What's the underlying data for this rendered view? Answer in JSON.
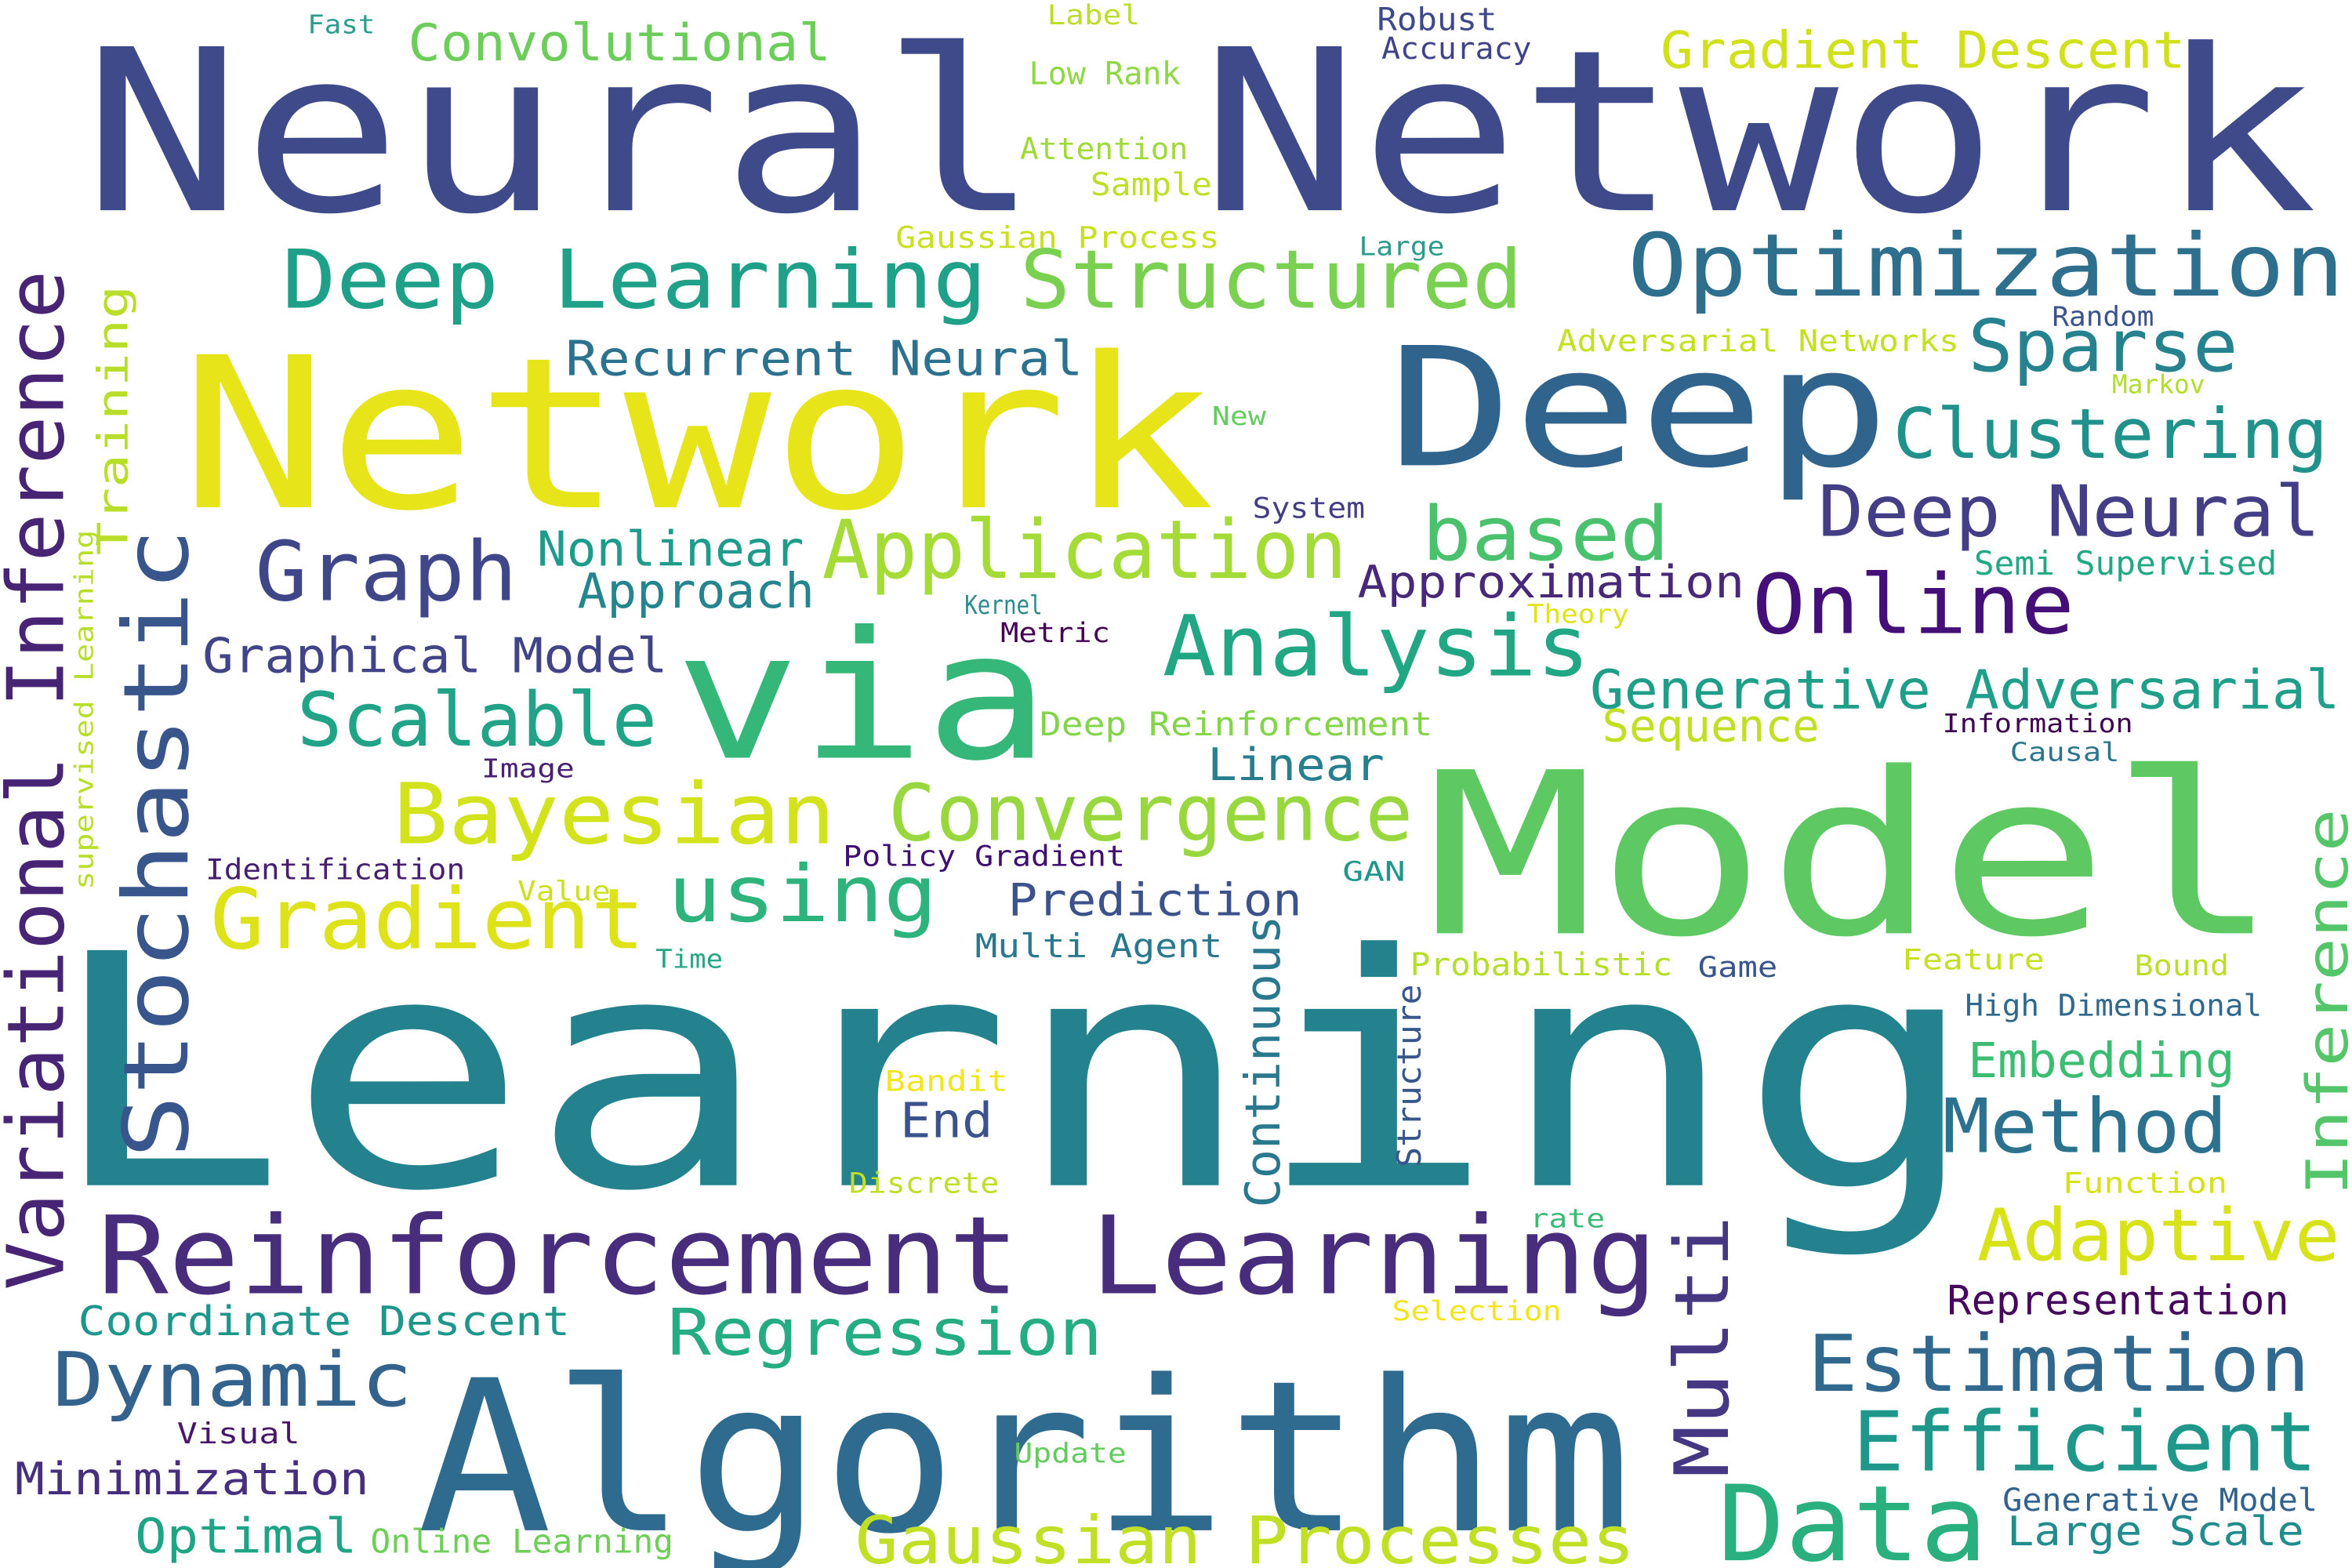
{
  "words": [
    {
      "text": "Learning",
      "color": "#23828e"
    },
    {
      "text": "Neural Network",
      "color": "#3e4a89"
    },
    {
      "text": "Algorithm",
      "color": "#2f6b8e"
    },
    {
      "text": "Model",
      "color": "#5ec962"
    },
    {
      "text": "Network",
      "color": "#e7e419"
    },
    {
      "text": "Deep",
      "color": "#31648d"
    },
    {
      "text": "via",
      "color": "#35b779"
    },
    {
      "text": "Reinforcement Learning",
      "color": "#472d7b"
    },
    {
      "text": "Optimization",
      "color": "#2e6f8e"
    },
    {
      "text": "Data",
      "color": "#2ab07f"
    },
    {
      "text": "Variational Inference",
      "color": "#482475"
    },
    {
      "text": "Stochastic",
      "color": "#39568c"
    },
    {
      "text": "Deep Learning",
      "color": "#1fa088"
    },
    {
      "text": "Structured",
      "color": "#7ad151"
    },
    {
      "text": "Analysis",
      "color": "#22a785"
    },
    {
      "text": "Application",
      "color": "#a5db36"
    },
    {
      "text": "Estimation",
      "color": "#31688e"
    },
    {
      "text": "Efficient",
      "color": "#1f988b"
    },
    {
      "text": "Gradient",
      "color": "#dde318"
    },
    {
      "text": "Bayesian",
      "color": "#d2e21b"
    },
    {
      "text": "Convergence",
      "color": "#98d83e"
    },
    {
      "text": "Graph",
      "color": "#3f4788"
    },
    {
      "text": "Online",
      "color": "#440f76"
    },
    {
      "text": "Clustering",
      "color": "#21918c"
    },
    {
      "text": "Deep Neural",
      "color": "#433e85"
    },
    {
      "text": "Sparse",
      "color": "#26828e"
    },
    {
      "text": "based",
      "color": "#4ac16d"
    },
    {
      "text": "Scalable",
      "color": "#20a386"
    },
    {
      "text": "using",
      "color": "#2eb37c"
    },
    {
      "text": "Method",
      "color": "#2c728e"
    },
    {
      "text": "Dynamic",
      "color": "#33638d"
    },
    {
      "text": "Regression",
      "color": "#25ac82"
    },
    {
      "text": "Gaussian Processes",
      "color": "#c0df25"
    },
    {
      "text": "Multi",
      "color": "#453781"
    },
    {
      "text": "Inference",
      "color": "#54c568"
    },
    {
      "text": "Adaptive",
      "color": "#d8e219"
    },
    {
      "text": "Generative Adversarial",
      "color": "#1f9e89"
    },
    {
      "text": "Recurrent Neural",
      "color": "#2c728e"
    },
    {
      "text": "Graphical Model",
      "color": "#414487"
    },
    {
      "text": "Nonlinear",
      "color": "#1e9b8a"
    },
    {
      "text": "Approach",
      "color": "#25858e"
    },
    {
      "text": "Training",
      "color": "#b8de29"
    },
    {
      "text": "Continuous",
      "color": "#2a788e"
    },
    {
      "text": "Convolutional",
      "color": "#6ccd5a"
    },
    {
      "text": "Gradient Descent",
      "color": "#d0e11c"
    },
    {
      "text": "Approximation",
      "color": "#482878"
    },
    {
      "text": "Prediction",
      "color": "#3b528b"
    },
    {
      "text": "Linear",
      "color": "#277f8e"
    },
    {
      "text": "Embedding",
      "color": "#3dbc74"
    },
    {
      "text": "Minimization",
      "color": "#46307e"
    },
    {
      "text": "Optimal",
      "color": "#20a486"
    },
    {
      "text": "Coordinate Descent",
      "color": "#1f968b"
    },
    {
      "text": "Representation",
      "color": "#46085c"
    },
    {
      "text": "Large Scale",
      "color": "#228c8d"
    },
    {
      "text": "End",
      "color": "#3b528b"
    },
    {
      "text": "Sequence",
      "color": "#c2df23"
    },
    {
      "text": "Deep Reinforcement",
      "color": "#84d44b"
    },
    {
      "text": "Generative Model",
      "color": "#33638d"
    },
    {
      "text": "Multi Agent",
      "color": "#2a788e"
    },
    {
      "text": "High Dimensional",
      "color": "#31688e"
    },
    {
      "text": "Semi Supervised",
      "color": "#22a884"
    },
    {
      "text": "Policy Gradient",
      "color": "#3f0f72"
    },
    {
      "text": "Online Learning",
      "color": "#6ece58"
    },
    {
      "text": "Structure",
      "color": "#39568c"
    },
    {
      "text": "Probabilistic",
      "color": "#b5de2b"
    },
    {
      "text": "Gaussian Process",
      "color": "#c8e020"
    },
    {
      "text": "Adversarial Networks",
      "color": "#c5e021"
    },
    {
      "text": "Identification",
      "color": "#481f70"
    },
    {
      "text": "Robust",
      "color": "#3e4989"
    },
    {
      "text": "Accuracy",
      "color": "#404387"
    },
    {
      "text": "Low Rank",
      "color": "#8fd744"
    },
    {
      "text": "Attention",
      "color": "#9fda3a"
    },
    {
      "text": "Sample",
      "color": "#bddf26"
    },
    {
      "text": "Fast",
      "color": "#2a9d8f"
    },
    {
      "text": "Label",
      "color": "#b9de28"
    },
    {
      "text": "Large",
      "color": "#2c9b8b"
    },
    {
      "text": "Random",
      "color": "#3b528b"
    },
    {
      "text": "Markov",
      "color": "#b2dd2d"
    },
    {
      "text": "New",
      "color": "#63cb5f"
    },
    {
      "text": "System",
      "color": "#433e85"
    },
    {
      "text": "Kernel",
      "color": "#2d8a8d"
    },
    {
      "text": "Metric",
      "color": "#440154"
    },
    {
      "text": "Theory",
      "color": "#e0e318"
    },
    {
      "text": "Information",
      "color": "#3e0751"
    },
    {
      "text": "Causal",
      "color": "#2b758e"
    },
    {
      "text": "Image",
      "color": "#482173"
    },
    {
      "text": "Value",
      "color": "#cbe11e"
    },
    {
      "text": "Time",
      "color": "#25a883"
    },
    {
      "text": "GAN",
      "color": "#1f978b"
    },
    {
      "text": "Game",
      "color": "#3a548c"
    },
    {
      "text": "Feature",
      "color": "#c6e020"
    },
    {
      "text": "Bound",
      "color": "#bbdf27"
    },
    {
      "text": "Bandit",
      "color": "#f1e51d"
    },
    {
      "text": "Discrete",
      "color": "#bede27"
    },
    {
      "text": "Function",
      "color": "#d5e21a"
    },
    {
      "text": "rate",
      "color": "#3aba76"
    },
    {
      "text": "Selection",
      "color": "#f2e51b"
    },
    {
      "text": "Visual",
      "color": "#481769"
    },
    {
      "text": "Update",
      "color": "#63cb5f"
    },
    {
      "text": "supervised Learning",
      "color": "#b7de2a"
    }
  ]
}
